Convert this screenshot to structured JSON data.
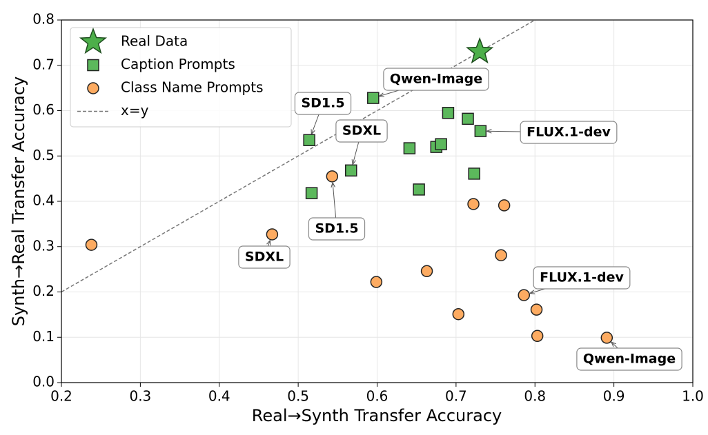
{
  "chart_data": {
    "type": "scatter",
    "xlabel": "Real→Synth Transfer Accuracy",
    "ylabel": "Synth→Real Transfer Accuracy",
    "xlim": [
      0.2,
      1.0
    ],
    "ylim": [
      0,
      0.8
    ],
    "xticks": [
      0.2,
      0.3,
      0.4,
      0.5,
      0.6,
      0.7,
      0.8,
      0.9,
      {
        "value": 1,
        "label": "1.0"
      }
    ],
    "yticks": [
      {
        "value": 0,
        "label": "0.0"
      },
      0.1,
      0.2,
      0.3,
      0.4,
      0.5,
      0.6,
      0.7,
      0.8
    ],
    "grid": true,
    "legend": "upper left",
    "series": [
      {
        "name": "Real Data",
        "marker": "star",
        "color": "#4daf4a",
        "x": [
          0.73
        ],
        "values": [
          0.73
        ]
      },
      {
        "name": "Caption Prompts",
        "marker": "square",
        "color": "#5cb85c",
        "x": [
          0.514,
          0.517,
          0.567,
          0.595,
          0.641,
          0.653,
          0.675,
          0.681,
          0.69,
          0.715,
          0.731,
          0.723
        ],
        "values": [
          0.535,
          0.418,
          0.468,
          0.628,
          0.517,
          0.426,
          0.52,
          0.526,
          0.595,
          0.582,
          0.555,
          0.461
        ]
      },
      {
        "name": "Class Name Prompts",
        "marker": "circle",
        "color": "#fdab61",
        "x": [
          0.238,
          0.467,
          0.543,
          0.599,
          0.663,
          0.703,
          0.722,
          0.761,
          0.757,
          0.786,
          0.802,
          0.803,
          0.891
        ],
        "values": [
          0.304,
          0.327,
          0.455,
          0.222,
          0.246,
          0.151,
          0.394,
          0.391,
          0.281,
          0.193,
          0.161,
          0.103,
          0.099
        ]
      },
      {
        "name": "x=y",
        "marker": "line",
        "color": "#777777",
        "x": [
          0.2,
          0.8
        ],
        "values": [
          0.2,
          0.8
        ]
      }
    ],
    "annotations": [
      {
        "text": "Qwen-Image"
      },
      {
        "text": "SD1.5"
      },
      {
        "text": "SDXL"
      },
      {
        "text": "FLUX.1-dev"
      },
      {
        "text": "SD1.5"
      },
      {
        "text": "SDXL"
      },
      {
        "text": "FLUX.1-dev"
      },
      {
        "text": "Qwen-Image"
      }
    ]
  }
}
